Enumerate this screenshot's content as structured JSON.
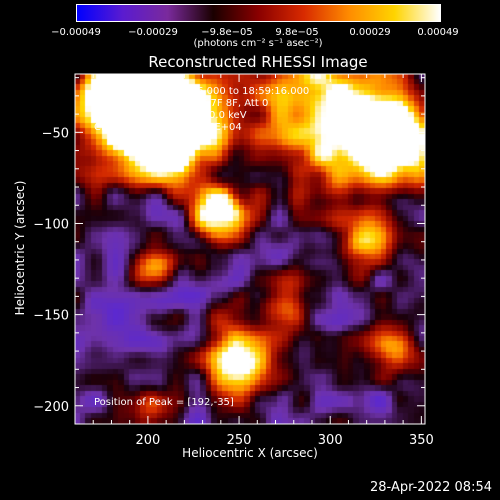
{
  "colorbar": {
    "ticks": [
      "−0.00049",
      "−0.00029",
      "−9.8e−05",
      "9.8e−05",
      "0.00029",
      "0.00049"
    ],
    "units": "(photons cm⁻² s⁻¹ asec⁻²)",
    "colors": [
      "#0000ff",
      "#5a1bd0",
      "#7a2a9c",
      "#1a0000",
      "#8a0000",
      "#d82a00",
      "#ff8c00",
      "#ffd400",
      "#ffffff"
    ]
  },
  "chart_data": {
    "type": "heatmap",
    "title": "Reconstructed RHESSI Image",
    "xlabel": "Heliocentric X (arcsec)",
    "ylabel": "Heliocentric Y (arcsec)",
    "xlim": [
      160,
      352
    ],
    "ylim": [
      -210,
      -18
    ],
    "xticks": [
      200,
      250,
      300,
      350
    ],
    "yticks": [
      -50,
      -100,
      -150,
      -200
    ],
    "grid": false,
    "annotations": [
      "20-Jan-2004 18:52:16.000 to 18:59:16.000",
      "Detectors: 3F 4F 5F 6F 7F 8F, Att 0",
      "Energy Range: 25.0 - 50.0 keV",
      "Clean    Total counts: 1.87E+04"
    ],
    "peak_label": "Position of Peak = [192,-35]",
    "peak_position": [
      192,
      -35
    ],
    "value_range": [
      -0.00049,
      0.00049
    ]
  },
  "timestamp": "28-Apr-2022 08:54"
}
